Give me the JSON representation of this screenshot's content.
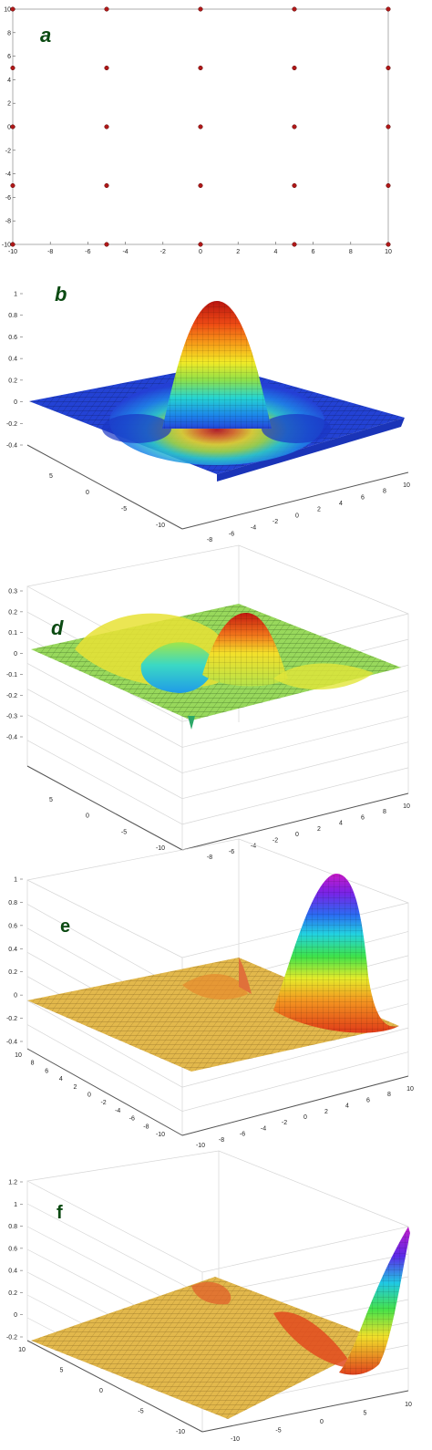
{
  "chart_data": [
    {
      "type": "scatter",
      "panel_label": "a",
      "x_ticks": [
        "-10",
        "-8",
        "-6",
        "-4",
        "-2",
        "0",
        "2",
        "4",
        "6",
        "8",
        "10"
      ],
      "y_ticks": [
        "10",
        "8",
        "6",
        "4",
        "2",
        "0",
        "-2",
        "-4",
        "-6",
        "-8",
        "-10"
      ],
      "xlim": [
        -10,
        10
      ],
      "ylim": [
        -10,
        10
      ],
      "marker_color": "#b01818",
      "points": [
        [
          -10,
          10
        ],
        [
          -5,
          10
        ],
        [
          0,
          10
        ],
        [
          5,
          10
        ],
        [
          10,
          10
        ],
        [
          -10,
          5
        ],
        [
          -5,
          5
        ],
        [
          0,
          5
        ],
        [
          5,
          5
        ],
        [
          10,
          5
        ],
        [
          -10,
          0
        ],
        [
          -5,
          0
        ],
        [
          0,
          0
        ],
        [
          5,
          0
        ],
        [
          10,
          0
        ],
        [
          -10,
          -5
        ],
        [
          -5,
          -5
        ],
        [
          0,
          -5
        ],
        [
          5,
          -5
        ],
        [
          10,
          -5
        ],
        [
          -10,
          -10
        ],
        [
          -5,
          -10
        ],
        [
          0,
          -10
        ],
        [
          5,
          -10
        ],
        [
          10,
          -10
        ]
      ]
    },
    {
      "type": "surface",
      "panel_label": "b",
      "z_ticks": [
        "1",
        "0.8",
        "0.6",
        "0.4",
        "0.2",
        "0",
        "-0.2",
        "-0.4"
      ],
      "y_ticks": [
        "5",
        "0",
        "-5",
        "-10"
      ],
      "x_ticks": [
        "-8",
        "-6",
        "-4",
        "-2",
        "0",
        "2",
        "4",
        "6",
        "8",
        "10"
      ],
      "zlim": [
        -0.4,
        1
      ],
      "peak_z": 0.9,
      "colormap": "jet"
    },
    {
      "type": "surface",
      "panel_label": "d",
      "z_ticks": [
        "0.3",
        "0.2",
        "0.1",
        "0",
        "-0.1",
        "-0.2",
        "-0.3",
        "-0.4"
      ],
      "y_ticks": [
        "5",
        "0",
        "-5",
        "-10"
      ],
      "x_ticks": [
        "-8",
        "-6",
        "-4",
        "-2",
        "0",
        "2",
        "4",
        "6",
        "8",
        "10"
      ],
      "zlim": [
        -0.4,
        0.3
      ],
      "colormap": "jet"
    },
    {
      "type": "surface",
      "panel_label": "e",
      "z_ticks": [
        "1",
        "0.8",
        "0.6",
        "0.4",
        "0.2",
        "0",
        "-0.2",
        "-0.4"
      ],
      "y_ticks": [
        "10",
        "8",
        "6",
        "4",
        "2",
        "0",
        "-2",
        "-4",
        "-6",
        "-8",
        "-10"
      ],
      "x_ticks": [
        "-10",
        "-8",
        "-6",
        "-4",
        "-2",
        "0",
        "2",
        "4",
        "6",
        "8",
        "10"
      ],
      "zlim": [
        -0.4,
        1
      ],
      "colormap": "hsv"
    },
    {
      "type": "surface",
      "panel_label": "f",
      "z_ticks": [
        "1.2",
        "1",
        "0.8",
        "0.6",
        "0.4",
        "0.2",
        "0",
        "-0.2"
      ],
      "y_ticks": [
        "10",
        "5",
        "0",
        "-5",
        "-10"
      ],
      "x_ticks": [
        "-10",
        "-5",
        "0",
        "5",
        "10"
      ],
      "zlim": [
        -0.2,
        1.2
      ],
      "colormap": "hsv"
    }
  ],
  "colors": {
    "blue_floor": "#1f3fd6",
    "yellow_floor": "#e0b84a",
    "green_floor": "#8fd35a",
    "marker": "#b01818",
    "label": "#0b4a12"
  }
}
